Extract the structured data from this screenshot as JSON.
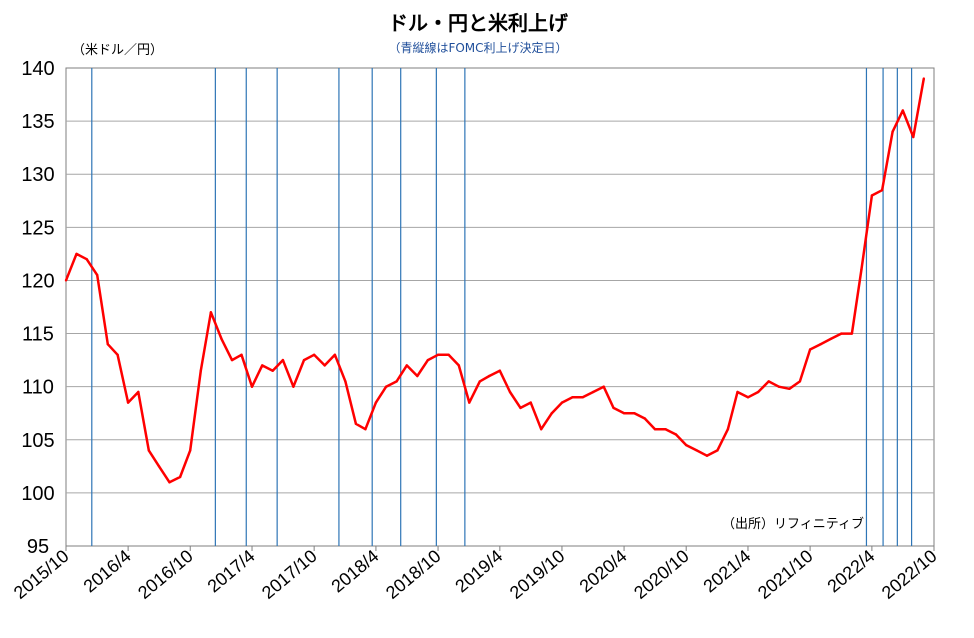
{
  "chart_data": {
    "type": "line",
    "title": "ドル・円と米利上げ",
    "subtitle": "（青縦線はFOMC利上げ決定日）",
    "ylabel": "（米ドル／円）",
    "source": "（出所）リフィニティブ",
    "ylim": [
      95,
      140
    ],
    "yticks": [
      95,
      100,
      105,
      110,
      115,
      120,
      125,
      130,
      135,
      140
    ],
    "xlim": [
      "2015-10",
      "2022-10"
    ],
    "xticks": [
      "2015/10",
      "2016/4",
      "2016/10",
      "2017/4",
      "2017/10",
      "2018/4",
      "2018/10",
      "2019/4",
      "2019/10",
      "2020/4",
      "2020/10",
      "2021/4",
      "2021/10",
      "2022/4",
      "2022/10"
    ],
    "grid": true,
    "series": [
      {
        "color": "#ff0000",
        "x": [
          "2015-10-01",
          "2015-11-01",
          "2015-12-01",
          "2016-01-01",
          "2016-02-01",
          "2016-03-01",
          "2016-04-01",
          "2016-05-01",
          "2016-06-01",
          "2016-07-01",
          "2016-08-01",
          "2016-09-01",
          "2016-10-01",
          "2016-11-01",
          "2016-12-01",
          "2017-01-01",
          "2017-02-01",
          "2017-03-01",
          "2017-04-01",
          "2017-05-01",
          "2017-06-01",
          "2017-07-01",
          "2017-08-01",
          "2017-09-01",
          "2017-10-01",
          "2017-11-01",
          "2017-12-01",
          "2018-01-01",
          "2018-02-01",
          "2018-03-01",
          "2018-04-01",
          "2018-05-01",
          "2018-06-01",
          "2018-07-01",
          "2018-08-01",
          "2018-09-01",
          "2018-10-01",
          "2018-11-01",
          "2018-12-01",
          "2019-01-01",
          "2019-02-01",
          "2019-03-01",
          "2019-04-01",
          "2019-05-01",
          "2019-06-01",
          "2019-07-01",
          "2019-08-01",
          "2019-09-01",
          "2019-10-01",
          "2019-11-01",
          "2019-12-01",
          "2020-01-01",
          "2020-02-01",
          "2020-03-01",
          "2020-04-01",
          "2020-05-01",
          "2020-06-01",
          "2020-07-01",
          "2020-08-01",
          "2020-09-01",
          "2020-10-01",
          "2020-11-01",
          "2020-12-01",
          "2021-01-01",
          "2021-02-01",
          "2021-03-01",
          "2021-04-01",
          "2021-05-01",
          "2021-06-01",
          "2021-07-01",
          "2021-08-01",
          "2021-09-01",
          "2021-10-01",
          "2021-11-01",
          "2021-12-01",
          "2022-01-01",
          "2022-02-01",
          "2022-03-01",
          "2022-04-01",
          "2022-05-01",
          "2022-06-01",
          "2022-07-01",
          "2022-08-01",
          "2022-09-01"
        ],
        "y": [
          120.0,
          122.5,
          122.0,
          120.5,
          114.0,
          113.0,
          108.5,
          109.5,
          104.0,
          102.5,
          101.0,
          101.5,
          104.0,
          111.5,
          117.0,
          114.5,
          112.5,
          113.0,
          110.0,
          112.0,
          111.5,
          112.5,
          110.0,
          112.5,
          113.0,
          112.0,
          113.0,
          110.5,
          106.5,
          106.0,
          108.5,
          110.0,
          110.5,
          112.0,
          111.0,
          112.5,
          113.0,
          113.0,
          112.0,
          108.5,
          110.5,
          111.0,
          111.5,
          109.5,
          108.0,
          108.5,
          106.0,
          107.5,
          108.5,
          109.0,
          109.0,
          109.5,
          110.0,
          108.0,
          107.5,
          107.5,
          107.0,
          106.0,
          106.0,
          105.5,
          104.5,
          104.0,
          103.5,
          104.0,
          106.0,
          109.5,
          109.0,
          109.5,
          110.5,
          110.0,
          109.8,
          110.5,
          113.5,
          114.0,
          114.5,
          115.0,
          115.0,
          121.0,
          128.0,
          128.5,
          134.0,
          136.0,
          133.5,
          139.0
        ]
      }
    ],
    "fomc_hike_dates": [
      "2015-12-16",
      "2016-12-14",
      "2017-03-15",
      "2017-06-14",
      "2017-12-13",
      "2018-03-21",
      "2018-06-13",
      "2018-09-26",
      "2018-12-19",
      "2022-03-16",
      "2022-05-04",
      "2022-06-15",
      "2022-07-27"
    ],
    "colors": {
      "line": "#ff0000",
      "fomc": "#2e75b6",
      "grid": "#a6a6a6"
    }
  }
}
